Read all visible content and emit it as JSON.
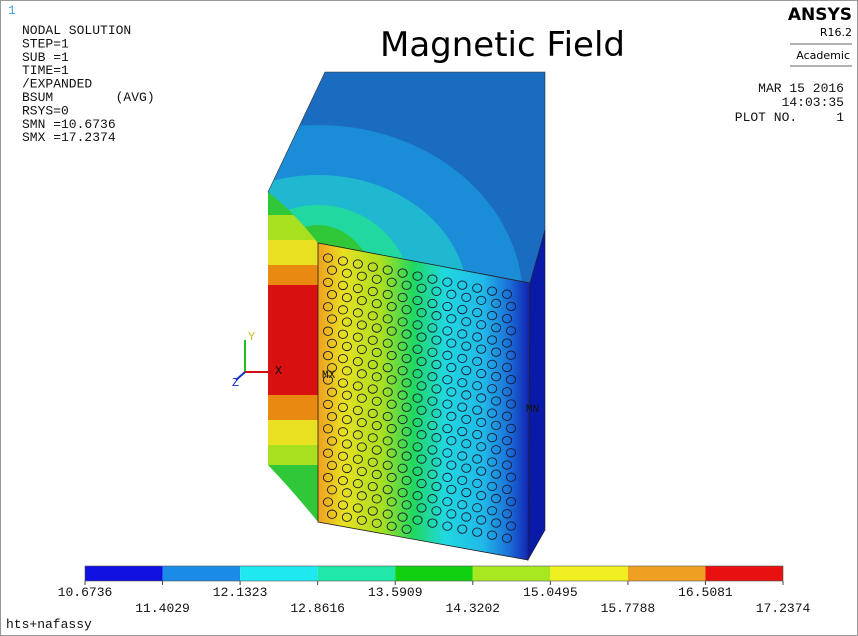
{
  "header": {
    "id": "1",
    "title": "Magnetic Field",
    "lines": [
      "NODAL SOLUTION",
      "STEP=1",
      "SUB =1",
      "TIME=1",
      "/EXPANDED",
      "BSUM        (AVG)",
      "RSYS=0",
      "SMN =10.6736",
      "SMX =17.2374"
    ]
  },
  "brand": {
    "name": "ANSYS",
    "version": "R16.2",
    "license": "Academic"
  },
  "plot_info": {
    "date": "MAR 15 2016",
    "time": "14:03:35",
    "plot_no": "PLOT NO.     1"
  },
  "axes": {
    "y": "Y",
    "x": "X",
    "z": "Z"
  },
  "markers": {
    "max": "MX",
    "min": "MN"
  },
  "legend": {
    "colors": [
      "#1010e0",
      "#1a8ce8",
      "#20e8f0",
      "#20e8a8",
      "#10d010",
      "#a8e820",
      "#f0f020",
      "#f0a020",
      "#e81010"
    ],
    "labels": [
      "10.6736",
      "11.4029",
      "12.1323",
      "12.8616",
      "13.5909",
      "14.3202",
      "15.0495",
      "15.7788",
      "16.5081",
      "17.2374"
    ]
  },
  "footer": "hts+nafassy"
}
